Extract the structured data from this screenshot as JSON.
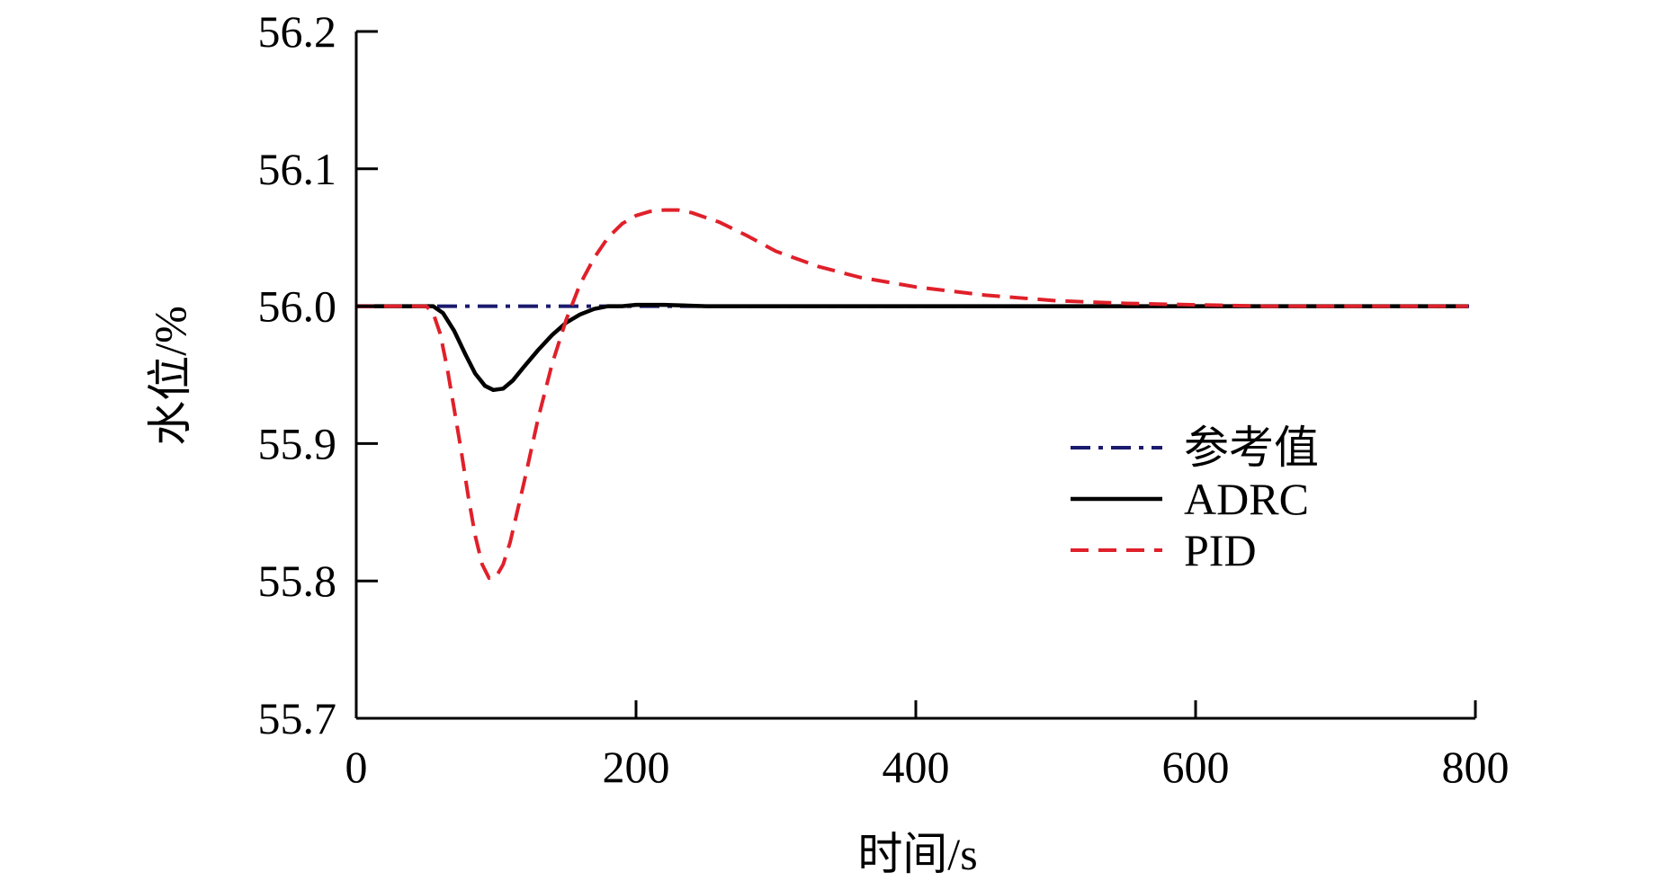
{
  "chart_data": {
    "type": "line",
    "xlabel": "时间/s",
    "ylabel": "水位/%",
    "xlim": [
      0,
      800
    ],
    "ylim": [
      55.7,
      56.2
    ],
    "x_ticks": [
      "0",
      "200",
      "400",
      "600",
      "800"
    ],
    "y_ticks": [
      "55.7",
      "55.8",
      "55.9",
      "56.0",
      "56.1",
      "56.2"
    ],
    "grid": false,
    "legend_position": "center-right",
    "series": [
      {
        "name": "参考值",
        "style": "dash-dot",
        "color": "#1a1a6e",
        "x": [
          0,
          800
        ],
        "y": [
          56.0,
          56.0
        ]
      },
      {
        "name": "ADRC",
        "style": "solid",
        "color": "#000000",
        "x": [
          0,
          40,
          55,
          62,
          70,
          78,
          85,
          92,
          98,
          105,
          112,
          120,
          130,
          140,
          150,
          160,
          170,
          180,
          190,
          200,
          220,
          250,
          300,
          400,
          500,
          600,
          700,
          795
        ],
        "y": [
          56.0,
          56.0,
          56.0,
          55.995,
          55.982,
          55.965,
          55.951,
          55.942,
          55.939,
          55.94,
          55.946,
          55.956,
          55.968,
          55.979,
          55.988,
          55.994,
          55.998,
          56.0,
          56.0,
          56.001,
          56.001,
          56.0,
          56.0,
          56.0,
          56.0,
          56.0,
          56.0,
          56.0
        ]
      },
      {
        "name": "PID",
        "style": "dashed",
        "color": "#e0202a",
        "x": [
          0,
          40,
          50,
          55,
          60,
          65,
          70,
          75,
          80,
          85,
          90,
          95,
          100,
          105,
          110,
          115,
          120,
          130,
          140,
          150,
          160,
          170,
          180,
          190,
          200,
          210,
          220,
          230,
          240,
          260,
          280,
          300,
          330,
          360,
          400,
          450,
          500,
          550,
          600,
          650,
          700,
          750,
          795
        ],
        "y": [
          56.0,
          56.0,
          56.0,
          55.995,
          55.98,
          55.955,
          55.925,
          55.895,
          55.862,
          55.833,
          55.812,
          55.802,
          55.803,
          55.812,
          55.828,
          55.85,
          55.872,
          55.918,
          55.958,
          55.99,
          56.016,
          56.035,
          56.05,
          56.06,
          56.066,
          56.069,
          56.07,
          56.07,
          56.068,
          56.061,
          56.051,
          56.04,
          56.029,
          56.021,
          56.014,
          56.008,
          56.004,
          56.002,
          56.001,
          56.0,
          56.0,
          56.0,
          56.0
        ]
      }
    ]
  }
}
